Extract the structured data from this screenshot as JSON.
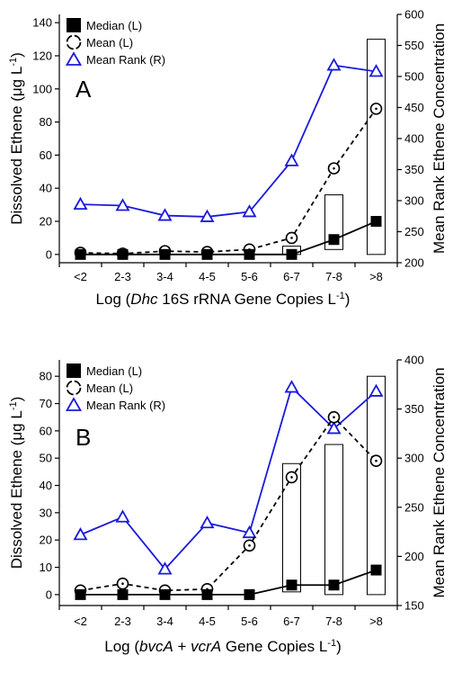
{
  "chart_data": [
    {
      "panel": "A",
      "type": "line",
      "categories": [
        "<2",
        "2-3",
        "3-4",
        "4-5",
        "5-6",
        "6-7",
        "7-8",
        ">8"
      ],
      "xlabel": {
        "pre": "Log (",
        "italic": "Dhc",
        "post": " 16S rRNA Gene Copies L",
        "sup": "-1",
        "close": ")"
      },
      "ylabel_left": {
        "pre": "Dissolved Ethene (",
        "unit": "μg L",
        "sup": "-1",
        "close": ")"
      },
      "ylabel_right": "Mean Rank Ethene Concentration",
      "ylim_left": [
        -5,
        145
      ],
      "yticks_left": [
        0,
        20,
        40,
        60,
        80,
        100,
        120,
        140
      ],
      "ylim_right": [
        200,
        600
      ],
      "yticks_right": [
        200,
        250,
        300,
        350,
        400,
        450,
        500,
        550,
        600
      ],
      "legend": [
        {
          "label": "Median (L)",
          "marker": "filled-square"
        },
        {
          "label": "Mean (L)",
          "marker": "open-circle"
        },
        {
          "label": "Mean Rank (R)",
          "marker": "open-triangle"
        }
      ],
      "series": [
        {
          "name": "Median (L)",
          "axis": "left",
          "style": "solid-black",
          "values": [
            0,
            0,
            0,
            0,
            0,
            0,
            9,
            20
          ]
        },
        {
          "name": "Mean (L)",
          "axis": "left",
          "style": "dashed-black",
          "values": [
            1,
            0.5,
            2,
            1.5,
            3,
            10,
            52,
            88
          ]
        },
        {
          "name": "Mean Rank (R)",
          "axis": "right",
          "style": "solid-blue",
          "values": [
            294,
            292,
            276,
            274,
            282,
            364,
            518,
            508
          ]
        }
      ],
      "bars": [
        {
          "category": "6-7",
          "low": 0,
          "high": 5
        },
        {
          "category": "7-8",
          "low": 3,
          "high": 36
        },
        {
          ">": true,
          "category": ">8",
          "low": 0,
          "high": 130
        }
      ]
    },
    {
      "panel": "B",
      "type": "line",
      "categories": [
        "<2",
        "2-3",
        "3-4",
        "4-5",
        "5-6",
        "6-7",
        "7-8",
        ">8"
      ],
      "xlabel": {
        "pre": "Log (",
        "italic": "bvcA",
        "mid": " + ",
        "italic2": "vcrA",
        "post": " Gene Copies L",
        "sup": "-1",
        "close": ")"
      },
      "ylabel_left": {
        "pre": "Dissolved Ethene (",
        "unit": "μg L",
        "sup": "-1",
        "close": ")"
      },
      "ylabel_right": "Mean Rank Ethene Concentration",
      "ylim_left": [
        -4,
        86
      ],
      "yticks_left": [
        0,
        10,
        20,
        30,
        40,
        50,
        60,
        70,
        80
      ],
      "ylim_right": [
        150,
        400
      ],
      "yticks_right": [
        150,
        200,
        250,
        300,
        350,
        400
      ],
      "legend": [
        {
          "label": "Median (L)",
          "marker": "filled-square"
        },
        {
          "label": "Mean (L)",
          "marker": "open-circle"
        },
        {
          "label": "Mean Rank (R)",
          "marker": "open-triangle"
        }
      ],
      "series": [
        {
          "name": "Median (L)",
          "axis": "left",
          "style": "solid-black",
          "values": [
            0,
            0,
            0,
            0,
            0,
            3.5,
            3.5,
            9
          ]
        },
        {
          "name": "Mean (L)",
          "axis": "left",
          "style": "dashed-black",
          "values": [
            1.5,
            4,
            1.5,
            2,
            18,
            43,
            65,
            49
          ]
        },
        {
          "name": "Mean Rank (R)",
          "axis": "right",
          "style": "solid-blue",
          "values": [
            222,
            240,
            187,
            234,
            224,
            372,
            330,
            368
          ]
        }
      ],
      "bars": [
        {
          "category": "6-7",
          "low": 1,
          "high": 48
        },
        {
          "category": "7-8",
          "low": 0,
          "high": 55
        },
        {
          "category": ">8",
          "low": 0,
          "high": 80
        }
      ]
    }
  ]
}
